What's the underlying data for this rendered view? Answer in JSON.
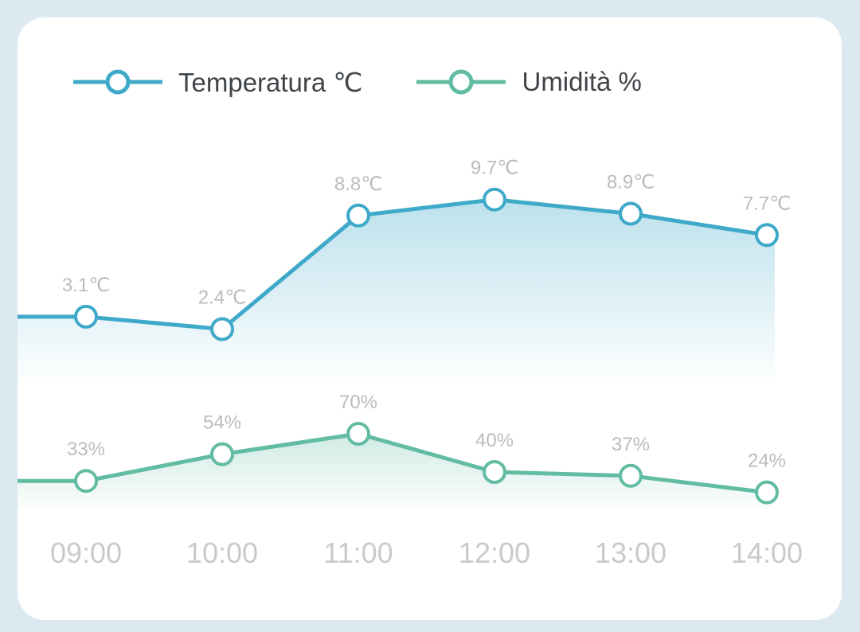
{
  "legend": {
    "temperature_label": "Temperatura ℃",
    "humidity_label": "Umidità %"
  },
  "colors": {
    "temperature": "#3fa9c9",
    "humidity": "#62bca3",
    "background": "#dde9f0",
    "card": "#ffffff"
  },
  "chart_data": {
    "type": "line",
    "title": "",
    "xlabel": "",
    "ylabel": "",
    "grid": false,
    "legend_position": "top-left",
    "categories": [
      "09:00",
      "10:00",
      "11:00",
      "12:00",
      "13:00",
      "14:00"
    ],
    "series": [
      {
        "name": "Temperatura ℃",
        "key": "temperature",
        "values": [
          3.1,
          2.4,
          8.8,
          9.7,
          8.9,
          7.7
        ],
        "labels": [
          "3.1℃",
          "2.4℃",
          "8.8℃",
          "9.7℃",
          "8.9℃",
          "7.7℃"
        ],
        "area": true
      },
      {
        "name": "Umidità %",
        "key": "humidity",
        "values": [
          33,
          54,
          70,
          40,
          37,
          24
        ],
        "labels": [
          "33%",
          "54%",
          "70%",
          "40%",
          "37%",
          "24%"
        ],
        "area": true
      }
    ]
  }
}
